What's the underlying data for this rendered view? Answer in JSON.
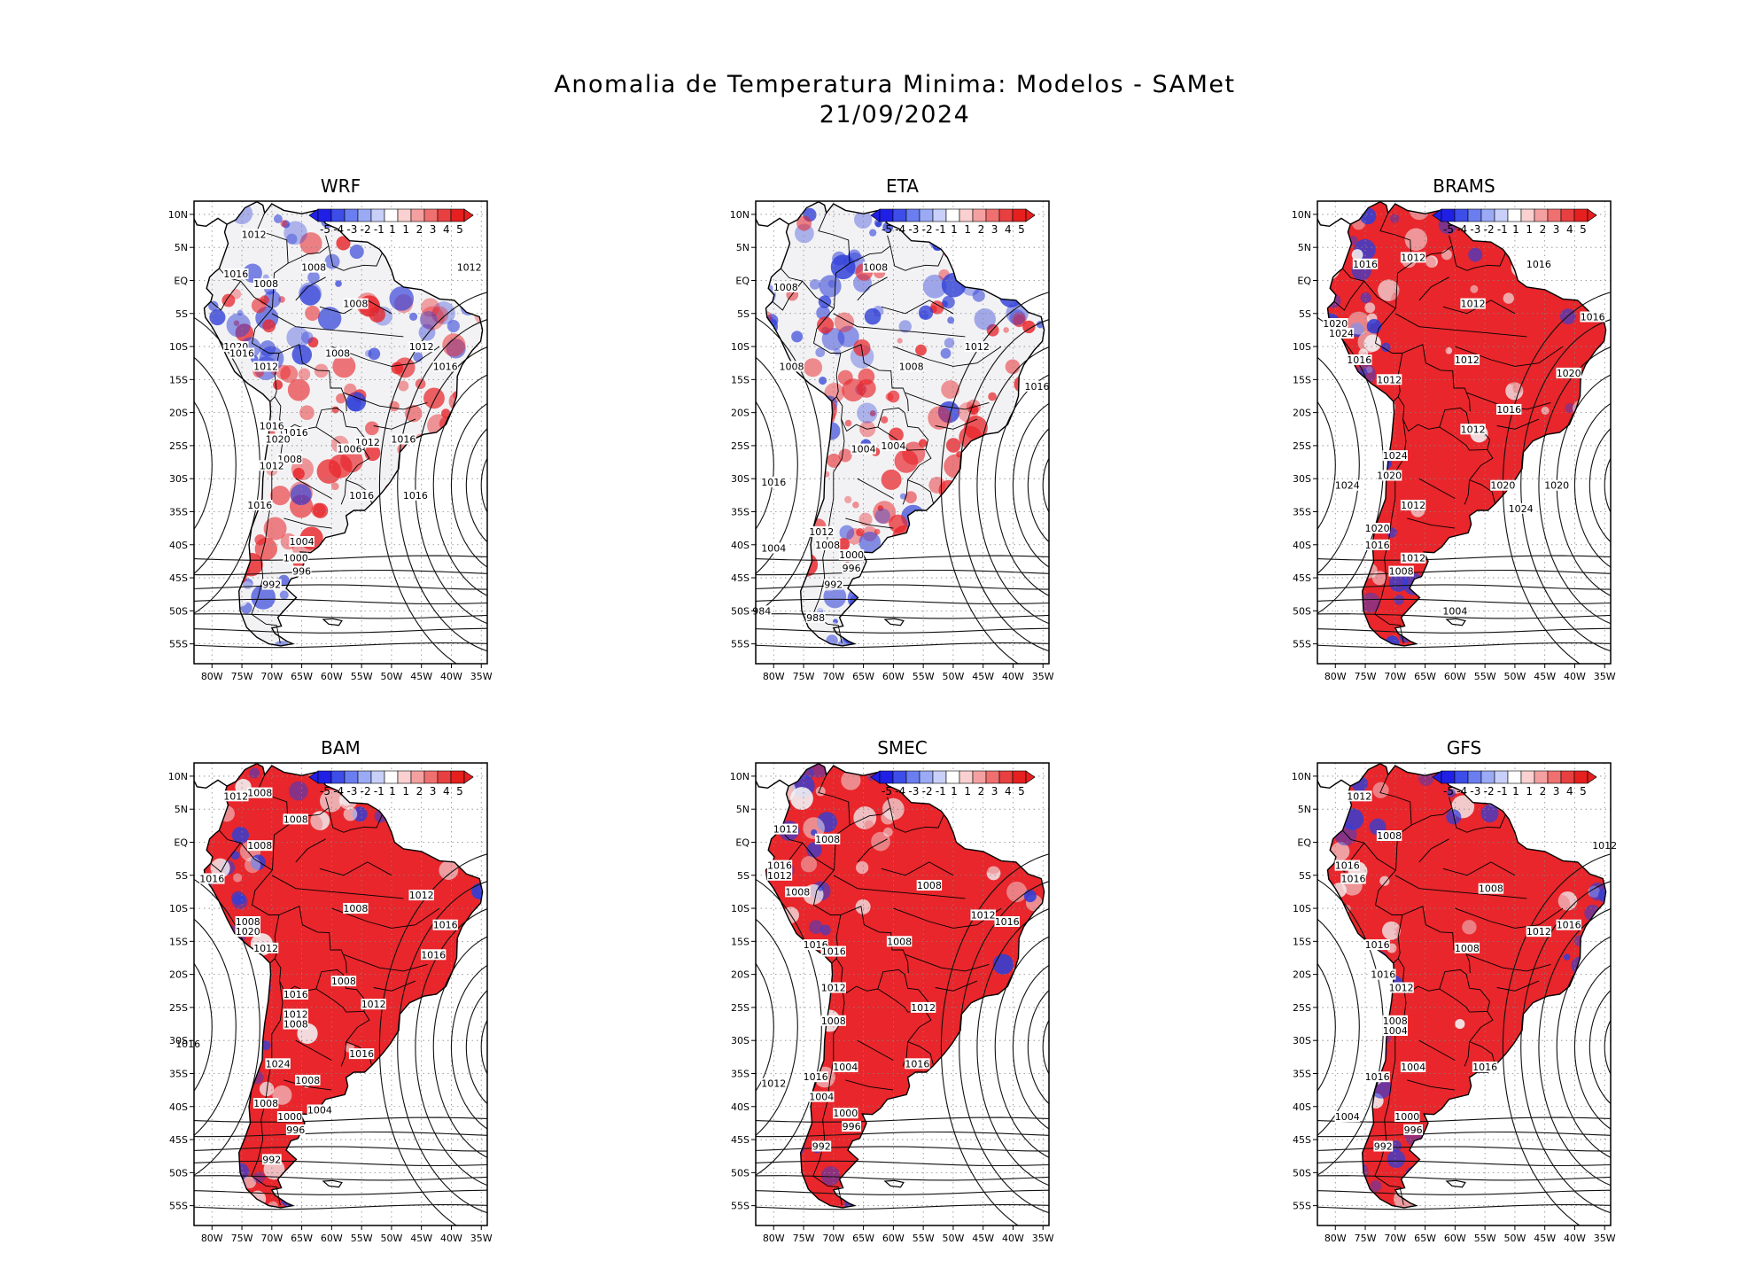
{
  "title": {
    "line1": "Anomalia de Temperatura Minima: Modelos - SAMet",
    "line2": "21/09/2024"
  },
  "axes": {
    "lat_labels": [
      "10N",
      "5N",
      "EQ",
      "5S",
      "10S",
      "15S",
      "20S",
      "25S",
      "30S",
      "35S",
      "40S",
      "45S",
      "50S",
      "55S"
    ],
    "lat_values": [
      10,
      5,
      0,
      -5,
      -10,
      -15,
      -20,
      -25,
      -30,
      -35,
      -40,
      -45,
      -50,
      -55
    ],
    "lon_labels": [
      "80W",
      "75W",
      "70W",
      "65W",
      "60W",
      "55W",
      "50W",
      "45W",
      "40W",
      "35W"
    ],
    "lon_values": [
      -80,
      -75,
      -70,
      -65,
      -60,
      -55,
      -50,
      -45,
      -40,
      -35
    ],
    "lon_range": [
      -83,
      -34
    ],
    "lat_range": [
      -58,
      12
    ]
  },
  "colorbar": {
    "labels": [
      "-5",
      "-4",
      "-3",
      "-2",
      "-1",
      "1",
      "1",
      "2",
      "3",
      "4",
      "5"
    ],
    "colors": [
      "#1f1fe6",
      "#3d4de8",
      "#6a7ef0",
      "#9aaaf5",
      "#c8d0fa",
      "#ffffff",
      "#fad0d0",
      "#f5a0a0",
      "#f07070",
      "#e84040",
      "#e61f1f"
    ]
  },
  "palette": {
    "warm": "#e8262b",
    "cool": "#2f3fd8",
    "neutral": "#f2f2f4",
    "coast": "#000000"
  },
  "panels": [
    {
      "name": "WRF",
      "anomaly": "mixed",
      "isobars": [
        {
          "text": "1012",
          "lon": -73,
          "lat": 7
        },
        {
          "text": "1008",
          "lon": -63,
          "lat": 2
        },
        {
          "text": "1016",
          "lon": -76,
          "lat": 1
        },
        {
          "text": "1008",
          "lon": -71,
          "lat": -0.5
        },
        {
          "text": "1008",
          "lon": -56,
          "lat": -3.5
        },
        {
          "text": "1012",
          "lon": -37,
          "lat": 2
        },
        {
          "text": "1012",
          "lon": -45,
          "lat": -10
        },
        {
          "text": "1008",
          "lon": -59,
          "lat": -11
        },
        {
          "text": "1020",
          "lon": -76,
          "lat": -10
        },
        {
          "text": "1016",
          "lon": -75,
          "lat": -11
        },
        {
          "text": "1012",
          "lon": -71,
          "lat": -13
        },
        {
          "text": "1016",
          "lon": -41,
          "lat": -13
        },
        {
          "text": "1016",
          "lon": -70,
          "lat": -22
        },
        {
          "text": "1016",
          "lon": -66,
          "lat": -23
        },
        {
          "text": "1020",
          "lon": -69,
          "lat": -24
        },
        {
          "text": "1012",
          "lon": -54,
          "lat": -24.5
        },
        {
          "text": "1016",
          "lon": -48,
          "lat": -24
        },
        {
          "text": "1006",
          "lon": -57,
          "lat": -25.5
        },
        {
          "text": "1008",
          "lon": -67,
          "lat": -27
        },
        {
          "text": "1012",
          "lon": -70,
          "lat": -28
        },
        {
          "text": "1016",
          "lon": -55,
          "lat": -32.5
        },
        {
          "text": "1016",
          "lon": -46,
          "lat": -32.5
        },
        {
          "text": "1016",
          "lon": -72,
          "lat": -34
        },
        {
          "text": "1004",
          "lon": -65,
          "lat": -39.5
        },
        {
          "text": "1000",
          "lon": -66,
          "lat": -42
        },
        {
          "text": "996",
          "lon": -65,
          "lat": -44
        },
        {
          "text": "992",
          "lon": -70,
          "lat": -46
        }
      ]
    },
    {
      "name": "ETA",
      "anomaly": "mixed",
      "isobars": [
        {
          "text": "1008",
          "lon": -78,
          "lat": -1
        },
        {
          "text": "1008",
          "lon": -63,
          "lat": 2
        },
        {
          "text": "1012",
          "lon": -46,
          "lat": -10
        },
        {
          "text": "1008",
          "lon": -77,
          "lat": -13
        },
        {
          "text": "1008",
          "lon": -57,
          "lat": -13
        },
        {
          "text": "1016",
          "lon": -36,
          "lat": -16
        },
        {
          "text": "1004",
          "lon": -65,
          "lat": -25.5
        },
        {
          "text": "1004",
          "lon": -60,
          "lat": -25
        },
        {
          "text": "1016",
          "lon": -80,
          "lat": -30.5
        },
        {
          "text": "1012",
          "lon": -72,
          "lat": -38
        },
        {
          "text": "1008",
          "lon": -71,
          "lat": -40
        },
        {
          "text": "1004",
          "lon": -80,
          "lat": -40.5
        },
        {
          "text": "1000",
          "lon": -67,
          "lat": -41.5
        },
        {
          "text": "996",
          "lon": -67,
          "lat": -43.5
        },
        {
          "text": "992",
          "lon": -70,
          "lat": -46
        },
        {
          "text": "984",
          "lon": -82,
          "lat": -50
        },
        {
          "text": "988",
          "lon": -73,
          "lat": -51
        }
      ]
    },
    {
      "name": "BRAMS",
      "anomaly": "warm",
      "isobars": [
        {
          "text": "1016",
          "lon": -75,
          "lat": 2.5
        },
        {
          "text": "1012",
          "lon": -67,
          "lat": 3.5
        },
        {
          "text": "1016",
          "lon": -46,
          "lat": 2.5
        },
        {
          "text": "1012",
          "lon": -57,
          "lat": -3.5
        },
        {
          "text": "1016",
          "lon": -37,
          "lat": -5.5
        },
        {
          "text": "1020",
          "lon": -80,
          "lat": -6.5
        },
        {
          "text": "1024",
          "lon": -79,
          "lat": -8
        },
        {
          "text": "1016",
          "lon": -76,
          "lat": -12
        },
        {
          "text": "1012",
          "lon": -58,
          "lat": -12
        },
        {
          "text": "1020",
          "lon": -41,
          "lat": -14
        },
        {
          "text": "1012",
          "lon": -71,
          "lat": -15
        },
        {
          "text": "1016",
          "lon": -51,
          "lat": -19.5
        },
        {
          "text": "1012",
          "lon": -57,
          "lat": -22.5
        },
        {
          "text": "1024",
          "lon": -70,
          "lat": -26.5
        },
        {
          "text": "1020",
          "lon": -71,
          "lat": -29.5
        },
        {
          "text": "1024",
          "lon": -78,
          "lat": -31
        },
        {
          "text": "1020",
          "lon": -52,
          "lat": -31
        },
        {
          "text": "1020",
          "lon": -43,
          "lat": -31
        },
        {
          "text": "1012",
          "lon": -67,
          "lat": -34
        },
        {
          "text": "1024",
          "lon": -49,
          "lat": -34.5
        },
        {
          "text": "1020",
          "lon": -73,
          "lat": -37.5
        },
        {
          "text": "1016",
          "lon": -73,
          "lat": -40
        },
        {
          "text": "1012",
          "lon": -67,
          "lat": -42
        },
        {
          "text": "1008",
          "lon": -69,
          "lat": -44
        },
        {
          "text": "1004",
          "lon": -60,
          "lat": -50
        }
      ]
    },
    {
      "name": "BAM",
      "anomaly": "warm",
      "isobars": [
        {
          "text": "1012",
          "lon": -76,
          "lat": 7
        },
        {
          "text": "1008",
          "lon": -72,
          "lat": 7.5
        },
        {
          "text": "1008",
          "lon": -66,
          "lat": 3.5
        },
        {
          "text": "1008",
          "lon": -72,
          "lat": -0.5
        },
        {
          "text": "1016",
          "lon": -80,
          "lat": -5.5
        },
        {
          "text": "1012",
          "lon": -45,
          "lat": -8
        },
        {
          "text": "1008",
          "lon": -56,
          "lat": -10
        },
        {
          "text": "1008",
          "lon": -74,
          "lat": -12
        },
        {
          "text": "1020",
          "lon": -74,
          "lat": -13.5
        },
        {
          "text": "1016",
          "lon": -41,
          "lat": -12.5
        },
        {
          "text": "1012",
          "lon": -71,
          "lat": -16
        },
        {
          "text": "1016",
          "lon": -43,
          "lat": -17
        },
        {
          "text": "1008",
          "lon": -58,
          "lat": -21
        },
        {
          "text": "1016",
          "lon": -66,
          "lat": -23
        },
        {
          "text": "1012",
          "lon": -53,
          "lat": -24.5
        },
        {
          "text": "1012",
          "lon": -66,
          "lat": -26
        },
        {
          "text": "1008",
          "lon": -66,
          "lat": -27.5
        },
        {
          "text": "1016",
          "lon": -84,
          "lat": -30.5
        },
        {
          "text": "1016",
          "lon": -55,
          "lat": -32
        },
        {
          "text": "1024",
          "lon": -69,
          "lat": -33.5
        },
        {
          "text": "1008",
          "lon": -64,
          "lat": -36
        },
        {
          "text": "1008",
          "lon": -71,
          "lat": -39.5
        },
        {
          "text": "1004",
          "lon": -62,
          "lat": -40.5
        },
        {
          "text": "1000",
          "lon": -67,
          "lat": -41.5
        },
        {
          "text": "996",
          "lon": -66,
          "lat": -43.5
        },
        {
          "text": "992",
          "lon": -70,
          "lat": -48
        }
      ]
    },
    {
      "name": "SMEC",
      "anomaly": "warm",
      "isobars": [
        {
          "text": "1012",
          "lon": -78,
          "lat": 2
        },
        {
          "text": "1008",
          "lon": -71,
          "lat": 0.5
        },
        {
          "text": "1016",
          "lon": -79,
          "lat": -3.5
        },
        {
          "text": "1012",
          "lon": -79,
          "lat": -5
        },
        {
          "text": "1008",
          "lon": -54,
          "lat": -6.5
        },
        {
          "text": "1008",
          "lon": -76,
          "lat": -7.5
        },
        {
          "text": "1012",
          "lon": -45,
          "lat": -11
        },
        {
          "text": "1016",
          "lon": -41,
          "lat": -12
        },
        {
          "text": "1016",
          "lon": -73,
          "lat": -15.5
        },
        {
          "text": "1016",
          "lon": -70,
          "lat": -16.5
        },
        {
          "text": "1008",
          "lon": -59,
          "lat": -15
        },
        {
          "text": "1012",
          "lon": -70,
          "lat": -22
        },
        {
          "text": "1012",
          "lon": -55,
          "lat": -25
        },
        {
          "text": "1008",
          "lon": -70,
          "lat": -27
        },
        {
          "text": "1004",
          "lon": -68,
          "lat": -34
        },
        {
          "text": "1016",
          "lon": -56,
          "lat": -33.5
        },
        {
          "text": "1016",
          "lon": -73,
          "lat": -35.5
        },
        {
          "text": "1012",
          "lon": -80,
          "lat": -36.5
        },
        {
          "text": "1004",
          "lon": -72,
          "lat": -38.5
        },
        {
          "text": "1000",
          "lon": -68,
          "lat": -41
        },
        {
          "text": "996",
          "lon": -67,
          "lat": -43
        },
        {
          "text": "992",
          "lon": -72,
          "lat": -46
        }
      ]
    },
    {
      "name": "GFS",
      "anomaly": "warm",
      "isobars": [
        {
          "text": "1012",
          "lon": -76,
          "lat": 7
        },
        {
          "text": "1008",
          "lon": -71,
          "lat": 1
        },
        {
          "text": "1012",
          "lon": -35,
          "lat": -0.5
        },
        {
          "text": "1016",
          "lon": -78,
          "lat": -3.5
        },
        {
          "text": "1016",
          "lon": -77,
          "lat": -5.5
        },
        {
          "text": "1008",
          "lon": -54,
          "lat": -7
        },
        {
          "text": "1012",
          "lon": -46,
          "lat": -13.5
        },
        {
          "text": "1016",
          "lon": -41,
          "lat": -12.5
        },
        {
          "text": "1016",
          "lon": -73,
          "lat": -15.5
        },
        {
          "text": "1008",
          "lon": -58,
          "lat": -16
        },
        {
          "text": "1016",
          "lon": -72,
          "lat": -20
        },
        {
          "text": "1012",
          "lon": -69,
          "lat": -22
        },
        {
          "text": "1008",
          "lon": -70,
          "lat": -27
        },
        {
          "text": "1004",
          "lon": -70,
          "lat": -28.5
        },
        {
          "text": "1004",
          "lon": -67,
          "lat": -34
        },
        {
          "text": "1016",
          "lon": -55,
          "lat": -34
        },
        {
          "text": "1016",
          "lon": -73,
          "lat": -35.5
        },
        {
          "text": "1004",
          "lon": -78,
          "lat": -41.5
        },
        {
          "text": "1000",
          "lon": -68,
          "lat": -41.5
        },
        {
          "text": "996",
          "lon": -67,
          "lat": -43.5
        },
        {
          "text": "992",
          "lon": -72,
          "lat": -46
        }
      ]
    }
  ]
}
